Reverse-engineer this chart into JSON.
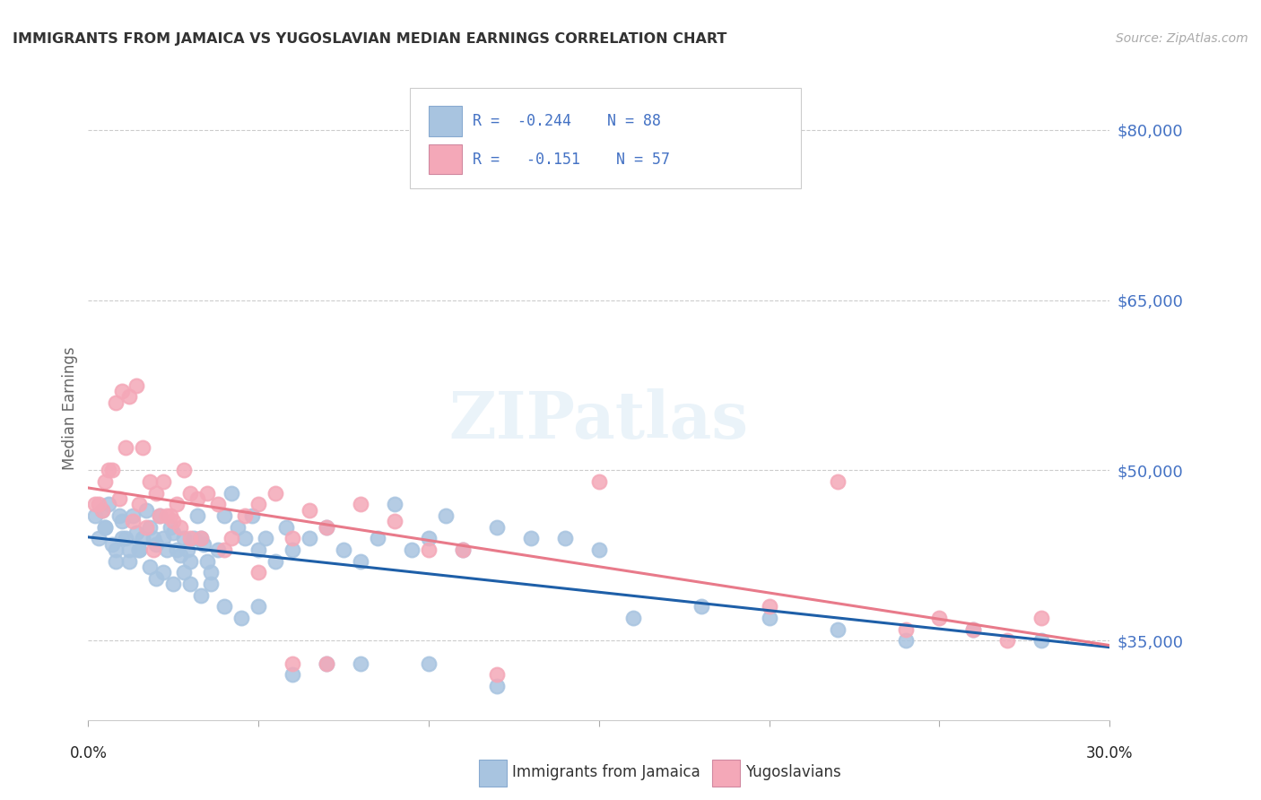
{
  "title": "IMMIGRANTS FROM JAMAICA VS YUGOSLAVIAN MEDIAN EARNINGS CORRELATION CHART",
  "source": "Source: ZipAtlas.com",
  "ylabel": "Median Earnings",
  "y_ticks": [
    35000,
    50000,
    65000,
    80000
  ],
  "y_tick_labels": [
    "$35,000",
    "$50,000",
    "$65,000",
    "$80,000"
  ],
  "xlim": [
    0.0,
    0.3
  ],
  "ylim": [
    28000,
    83000
  ],
  "color_jamaica": "#a8c4e0",
  "color_yugoslavian": "#f4a8b8",
  "color_line_jamaica": "#1e5fa8",
  "color_line_yugoslavian": "#e87a8a",
  "jamaica_scatter_x": [
    0.002,
    0.003,
    0.004,
    0.005,
    0.006,
    0.007,
    0.008,
    0.009,
    0.01,
    0.011,
    0.012,
    0.013,
    0.014,
    0.015,
    0.016,
    0.017,
    0.018,
    0.019,
    0.02,
    0.021,
    0.022,
    0.023,
    0.024,
    0.025,
    0.026,
    0.027,
    0.028,
    0.029,
    0.03,
    0.031,
    0.032,
    0.033,
    0.034,
    0.035,
    0.036,
    0.038,
    0.04,
    0.042,
    0.044,
    0.046,
    0.048,
    0.05,
    0.052,
    0.055,
    0.058,
    0.06,
    0.065,
    0.07,
    0.075,
    0.08,
    0.085,
    0.09,
    0.095,
    0.1,
    0.105,
    0.11,
    0.12,
    0.13,
    0.14,
    0.15,
    0.005,
    0.008,
    0.01,
    0.012,
    0.015,
    0.018,
    0.02,
    0.022,
    0.025,
    0.028,
    0.03,
    0.033,
    0.036,
    0.04,
    0.045,
    0.05,
    0.06,
    0.07,
    0.08,
    0.1,
    0.12,
    0.16,
    0.18,
    0.2,
    0.22,
    0.24,
    0.26,
    0.28
  ],
  "jamaica_scatter_y": [
    46000,
    44000,
    46500,
    45000,
    47000,
    43500,
    42000,
    46000,
    45500,
    44000,
    43000,
    46000,
    44500,
    43000,
    44000,
    46500,
    45000,
    44000,
    43500,
    46000,
    44000,
    43000,
    45000,
    44500,
    43000,
    42500,
    44000,
    43000,
    42000,
    44000,
    46000,
    44000,
    43500,
    42000,
    41000,
    43000,
    46000,
    48000,
    45000,
    44000,
    46000,
    43000,
    44000,
    42000,
    45000,
    43000,
    44000,
    45000,
    43000,
    42000,
    44000,
    47000,
    43000,
    44000,
    46000,
    43000,
    45000,
    44000,
    44000,
    43000,
    45000,
    43000,
    44000,
    42000,
    43000,
    41500,
    40500,
    41000,
    40000,
    41000,
    40000,
    39000,
    40000,
    38000,
    37000,
    38000,
    32000,
    33000,
    33000,
    33000,
    31000,
    37000,
    38000,
    37000,
    36000,
    35000,
    36000,
    35000
  ],
  "yugoslavian_scatter_x": [
    0.002,
    0.004,
    0.006,
    0.008,
    0.01,
    0.012,
    0.014,
    0.016,
    0.018,
    0.02,
    0.022,
    0.024,
    0.026,
    0.028,
    0.03,
    0.032,
    0.035,
    0.038,
    0.042,
    0.046,
    0.05,
    0.055,
    0.06,
    0.065,
    0.07,
    0.08,
    0.09,
    0.1,
    0.11,
    0.12,
    0.003,
    0.005,
    0.007,
    0.009,
    0.011,
    0.013,
    0.015,
    0.017,
    0.019,
    0.021,
    0.023,
    0.025,
    0.027,
    0.03,
    0.033,
    0.04,
    0.05,
    0.06,
    0.07,
    0.15,
    0.2,
    0.22,
    0.24,
    0.25,
    0.26,
    0.27,
    0.28
  ],
  "yugoslavian_scatter_y": [
    47000,
    46500,
    50000,
    56000,
    57000,
    56500,
    57500,
    52000,
    49000,
    48000,
    49000,
    46000,
    47000,
    50000,
    48000,
    47500,
    48000,
    47000,
    44000,
    46000,
    47000,
    48000,
    44000,
    46500,
    45000,
    47000,
    45500,
    43000,
    43000,
    32000,
    47000,
    49000,
    50000,
    47500,
    52000,
    45500,
    47000,
    45000,
    43000,
    46000,
    46000,
    45500,
    45000,
    44000,
    44000,
    43000,
    41000,
    33000,
    33000,
    49000,
    38000,
    49000,
    36000,
    37000,
    36000,
    35000,
    37000
  ]
}
